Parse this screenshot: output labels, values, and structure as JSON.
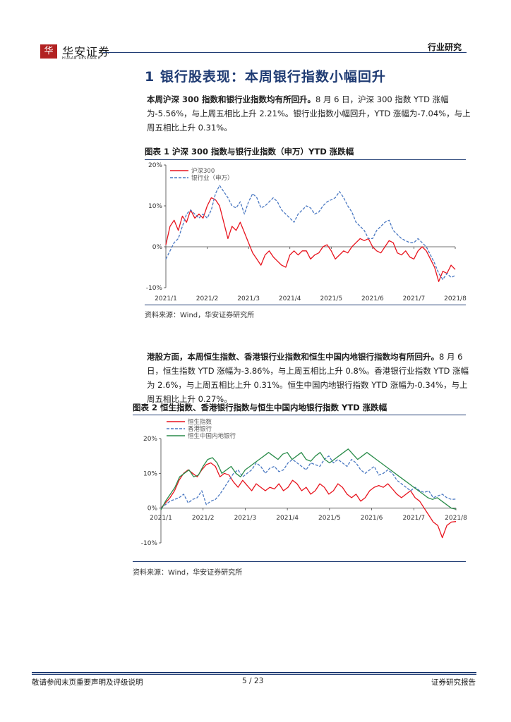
{
  "header": {
    "logo_mark": "华",
    "logo_text": "华安证券",
    "logo_sub": "HUAAN RESEARCH",
    "section_label": "行业研究"
  },
  "section": {
    "number": "1",
    "title": "银行股表现：本周银行指数小幅回升"
  },
  "paragraph1": {
    "lead": "本周沪深 300 指数和银行业指数均有所回升。",
    "body": "8 月 6 日，沪深 300 指数 YTD 涨幅为-5.56%，与上周五相比上升 2.21%。银行业指数小幅回升，YTD 涨幅为-7.04%，与上周五相比上升 0.31%。"
  },
  "figure1": {
    "title": "图表 1 沪深 300 指数与银行业指数（申万）YTD 涨跌幅",
    "source": "资料来源：Wind，华安证券研究所"
  },
  "paragraph2": {
    "lead": "港股方面，本周恒生指数、香港银行业指数和恒生中国内地银行指数均有所回升。",
    "body": "8 月 6 日，恒生指数 YTD 涨幅为-3.86%，与上周五相比上升 0.8%。香港银行业指数 YTD 涨幅为 2.6%，与上周五相比上升 0.31%。恒生中国内地银行指数 YTD 涨幅为-0.34%，与上周五相比上升 0.27%。"
  },
  "figure2": {
    "title": "图表 2 恒生指数、香港银行指数与恒生中国内地银行指数 YTD 涨跌幅",
    "source": "资料来源：Wind，华安证券研究所"
  },
  "footer": {
    "left": "敬请参阅末页重要声明及评级说明",
    "page": "5 / 23",
    "right": "证券研究报告"
  },
  "chart_data": [
    {
      "type": "line",
      "x_ticks": [
        "2021/1",
        "2021/2",
        "2021/3",
        "2021/4",
        "2021/5",
        "2021/6",
        "2021/7",
        "2021/8"
      ],
      "y_ticks": [
        "20%",
        "10%",
        "0%",
        "-10%"
      ],
      "ylim": [
        -10,
        20
      ],
      "legend_position": "top-left",
      "colors": {
        "沪深300": "#e8141e",
        "银行业（申万）": "#4a78c2"
      },
      "series": [
        {
          "name": "沪深300",
          "style": "solid",
          "values": [
            0.5,
            5,
            6.5,
            4,
            7.5,
            6,
            9,
            7,
            8,
            7,
            10,
            12,
            11.5,
            10,
            6,
            2,
            5,
            4,
            6,
            3.5,
            1,
            -1.5,
            -3,
            -4.5,
            -2,
            -1,
            -2.5,
            -3.5,
            -4.5,
            -5,
            -2,
            -1,
            -2,
            -1,
            -1,
            -3,
            -2,
            -1.5,
            0,
            0.5,
            -1,
            -3,
            -2,
            -1,
            -1.5,
            0,
            1,
            2,
            1.5,
            2,
            0,
            -1,
            -1.5,
            0,
            1.5,
            1,
            -1.5,
            -2,
            -1,
            -2.5,
            -3,
            -1,
            0,
            -1,
            -3,
            -5,
            -8.5,
            -6,
            -6.5,
            -4.5,
            -5.56
          ]
        },
        {
          "name": "银行业（申万）",
          "style": "dashed",
          "values": [
            -3,
            -1,
            1,
            2,
            5,
            8,
            9,
            8,
            7,
            8,
            7,
            9,
            13,
            15,
            13.5,
            12,
            10,
            9.5,
            11,
            8,
            11,
            13,
            12,
            9.5,
            10,
            11,
            12,
            11,
            9,
            8,
            7,
            6,
            8,
            9,
            10,
            9.5,
            8,
            8.5,
            10,
            11,
            11.5,
            12,
            13.5,
            12,
            10,
            8.5,
            6,
            5,
            4,
            2,
            2,
            4,
            5,
            6,
            6.5,
            4,
            3,
            2,
            1.5,
            1,
            1,
            2,
            1,
            0,
            -2,
            -4,
            -6.5,
            -8,
            -6.5,
            -7.5,
            -7.04
          ]
        }
      ]
    },
    {
      "type": "line",
      "x_ticks": [
        "2021/1",
        "2021/2",
        "2021/3",
        "2021/4",
        "2021/5",
        "2021/6",
        "2021/7",
        "2021/8"
      ],
      "y_ticks": [
        "20%",
        "10%",
        "0%",
        "-10%"
      ],
      "ylim": [
        -10,
        20
      ],
      "legend_position": "top-left",
      "colors": {
        "恒生指数": "#e8141e",
        "香港银行": "#4a78c2",
        "恒生中国内地银行": "#2a8c4a"
      },
      "series": [
        {
          "name": "恒生指数",
          "style": "solid",
          "values": [
            0,
            1.5,
            3,
            5,
            8,
            10,
            11,
            10,
            9,
            11,
            12.5,
            13,
            12,
            9,
            10,
            9.5,
            7.5,
            6,
            8,
            6.5,
            5,
            7,
            6,
            5,
            6,
            5.5,
            7,
            5,
            6,
            8,
            7,
            5,
            6,
            4,
            5,
            7,
            6,
            4,
            5,
            7,
            6,
            4,
            3,
            4,
            2,
            3,
            5,
            6,
            6.5,
            6,
            7,
            5.5,
            4,
            3,
            4,
            5,
            3,
            2,
            0,
            -2,
            -4,
            -5,
            -8.5,
            -5,
            -4,
            -3.86
          ]
        },
        {
          "name": "香港银行",
          "style": "dashed",
          "values": [
            0,
            1,
            2,
            2.5,
            3,
            4,
            1.5,
            2.5,
            3,
            5,
            1,
            2,
            2.5,
            4,
            6,
            8,
            10,
            11,
            9,
            10,
            11,
            13,
            12,
            10,
            11.5,
            12,
            10.5,
            11,
            13,
            14,
            13,
            12,
            11,
            13,
            12.5,
            12,
            14,
            15,
            13,
            14,
            13,
            12,
            14,
            13,
            11,
            10,
            11,
            12,
            9.5,
            10,
            11,
            10,
            8,
            7,
            6,
            5,
            6,
            5,
            4.5,
            5,
            3,
            3.5,
            4,
            3,
            2.5,
            2.6
          ]
        },
        {
          "name": "恒生中国内地银行",
          "style": "solid",
          "values": [
            -0.5,
            2,
            4,
            6,
            9,
            10,
            11,
            9,
            9.5,
            12,
            14,
            14.5,
            13,
            10,
            11,
            12,
            10,
            9,
            11,
            12,
            13,
            14,
            15,
            16,
            15,
            14,
            15.5,
            16,
            14,
            15,
            16,
            14,
            13.5,
            15,
            16,
            14,
            13,
            14,
            15,
            16,
            17,
            15.5,
            14,
            15,
            16,
            15,
            14,
            13,
            12,
            11,
            10,
            9,
            8,
            7,
            6,
            5,
            4,
            3,
            2.5,
            3,
            2,
            1,
            0,
            -0.34
          ]
        }
      ]
    }
  ]
}
